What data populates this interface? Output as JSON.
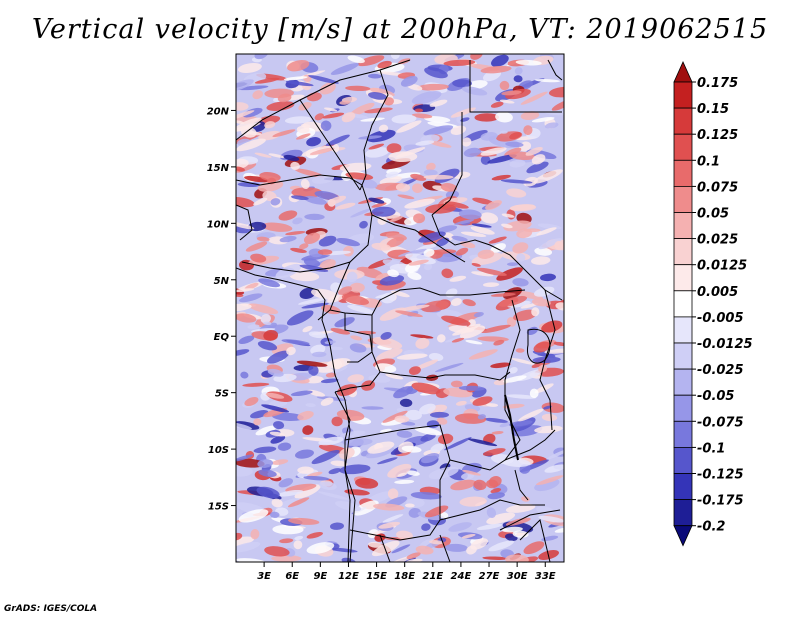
{
  "title": "Vertical velocity [m/s] at 200hPa, VT: 2019062515",
  "credit": "GrADS: IGES/COLA",
  "map": {
    "lat_ticks": [
      "20N",
      "15N",
      "10N",
      "5N",
      "EQ",
      "5S",
      "10S",
      "15S"
    ],
    "lon_ticks": [
      "3E",
      "6E",
      "9E",
      "12E",
      "15E",
      "18E",
      "21E",
      "24E",
      "27E",
      "30E",
      "33E"
    ],
    "lon_range": [
      0,
      35
    ],
    "lat_range": [
      -20,
      25
    ]
  },
  "colorbar": {
    "labels": [
      "0.175",
      "0.15",
      "0.125",
      "0.1",
      "0.075",
      "0.05",
      "0.025",
      "0.0125",
      "0.005",
      "-0.005",
      "-0.0125",
      "-0.025",
      "-0.05",
      "-0.075",
      "-0.1",
      "-0.125",
      "-0.175",
      "-0.2"
    ],
    "colors": [
      "#a00f0f",
      "#c42020",
      "#d63a3a",
      "#e05050",
      "#e86b6b",
      "#ef8c8c",
      "#f5b1b1",
      "#f9d2d2",
      "#fdeaea",
      "#ffffff",
      "#e6e6fb",
      "#cfcff6",
      "#b4b4f0",
      "#9696e8",
      "#7878dd",
      "#5656cc",
      "#3434b8",
      "#1e1e96",
      "#0a0a78"
    ]
  }
}
